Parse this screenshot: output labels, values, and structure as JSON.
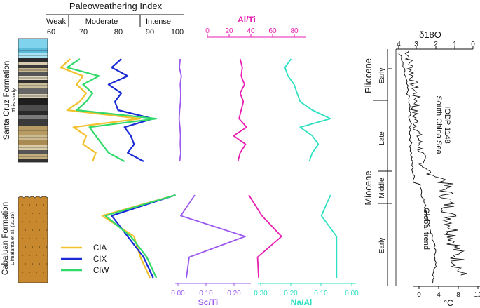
{
  "chart_data": {
    "type": "line",
    "title": "Paleoweathering Index",
    "weathering_classes": [
      "Weak",
      "Moderate",
      "Intense"
    ],
    "paleoweathering_axis": {
      "ticks": [
        "60",
        "70",
        "80",
        "90",
        "100"
      ],
      "range": [
        60,
        100
      ]
    },
    "alti_axis": {
      "label": "Al/Ti",
      "ticks": [
        "0",
        "20",
        "40",
        "60",
        "80"
      ],
      "range": [
        0,
        90
      ]
    },
    "scti_axis": {
      "label": "Sc/Ti",
      "ticks": [
        "0.00",
        "0.10",
        "0.20"
      ],
      "range": [
        0,
        0.24
      ]
    },
    "naal_axis": {
      "label": "Na/Al",
      "ticks": [
        "0.30",
        "0.20",
        "0.10",
        "0.00"
      ],
      "range": [
        0.3,
        0
      ]
    },
    "santa_cruz": {
      "formation": "Santa Cruz Formation",
      "source": "This study",
      "samples": 13,
      "series": [
        {
          "name": "CIA",
          "color": "#f2c12e",
          "values": [
            66,
            63,
            70,
            68,
            71,
            69,
            65,
            88,
            67,
            71,
            70,
            74,
            73
          ]
        },
        {
          "name": "CIX",
          "color": "#1a2bd6",
          "values": [
            82,
            79,
            84,
            78,
            82,
            80,
            81,
            92,
            83,
            85,
            86,
            84,
            89
          ]
        },
        {
          "name": "CIW",
          "color": "#31d96a",
          "values": [
            69,
            65,
            75,
            70,
            73,
            71,
            68,
            93,
            72,
            74,
            76,
            78,
            83
          ]
        }
      ],
      "sc_ti": [
        0.008,
        0.005,
        0.012,
        0.008,
        0.01,
        0.009,
        0.006,
        0.004,
        0.007,
        0.009,
        0.008,
        0.01,
        0.006
      ],
      "al_ti": [
        30,
        32,
        31,
        34,
        30,
        33,
        31,
        29,
        36,
        24,
        35,
        30,
        28
      ],
      "na_al": [
        0.2,
        0.22,
        0.21,
        0.19,
        0.18,
        0.17,
        0.13,
        0.07,
        0.17,
        0.13,
        0.11,
        0.13,
        0.14
      ]
    },
    "cabaluan": {
      "formation": "Cabaluan Formation",
      "source": "Dimalanta et al. (2015)",
      "samples": 5,
      "series": [
        {
          "name": "CIA",
          "color": "#f2c12e",
          "values": [
            99,
            76,
            86,
            88,
            91
          ]
        },
        {
          "name": "CIX",
          "color": "#1a2bd6",
          "values": [
            99,
            79,
            84,
            89,
            92
          ]
        },
        {
          "name": "CIW",
          "color": "#31d96a",
          "values": [
            99,
            77,
            85,
            90,
            93
          ]
        }
      ],
      "sc_ti": [
        0.06,
        0.01,
        0.24,
        0.04,
        0.03
      ],
      "al_ti": [
        38,
        50,
        68,
        46,
        47
      ],
      "na_al": [
        0.07,
        0.1,
        0.05,
        0.05,
        0.05
      ]
    },
    "legend": [
      "CIA",
      "CIX",
      "CIW"
    ],
    "oxygen_isotope": {
      "label": "δ18O",
      "top_ticks": [
        "4",
        "3",
        "2",
        "1",
        "0"
      ],
      "bottom_ticks": [
        "0",
        "4",
        "8",
        "12"
      ],
      "bottom_unit": "°C",
      "record_label_1": "South China Sea",
      "record_label_2": "IODP 1148",
      "trend_label": "Global trend"
    },
    "chronostratigraphy": {
      "epochs": [
        "Pliocene",
        "Miocene"
      ],
      "sub_epochs": [
        "Early",
        "Late",
        "Middle",
        "Early"
      ]
    }
  }
}
